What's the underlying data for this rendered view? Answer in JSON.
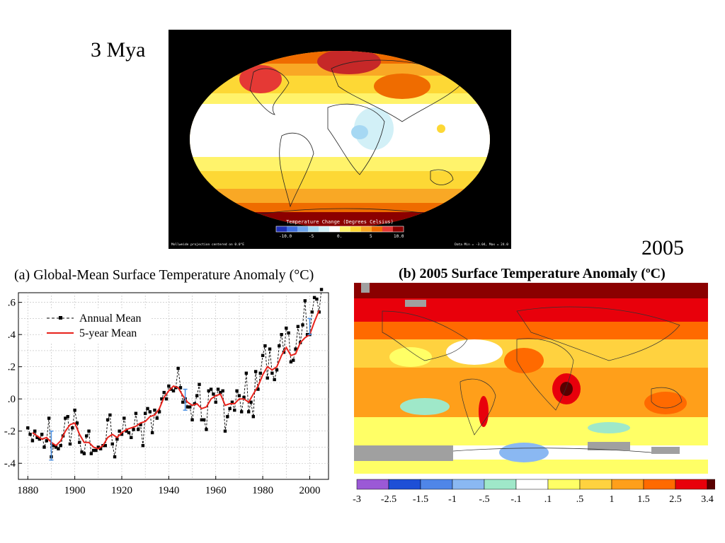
{
  "labels": {
    "mya": "3 Mya",
    "year2005": "2005"
  },
  "map3": {
    "colorbar_title": "Temperature Change (Degrees Celsius)",
    "tick_labels": [
      "-10.0",
      "-5",
      "0.",
      "5",
      "10.0"
    ],
    "footer_left": "Mollweide projection centered on 0.0°E",
    "footer_right": "Data Min = -3.04, Max = 24.0",
    "colors": [
      "#1f2fb3",
      "#3f6fe0",
      "#6fa6ee",
      "#a6d8f3",
      "#d2f0f7",
      "#ffffff",
      "#fff36b",
      "#fdd835",
      "#f9a825",
      "#ef6c00",
      "#e53935",
      "#8b0000"
    ]
  },
  "chartA": {
    "title": "(a)  Global-Mean Surface Temperature Anomaly (°C)"
  },
  "chartB": {
    "title": "(b) 2005 Surface Temperature Anomaly (ºC)",
    "colorbar_ticks": [
      "-3",
      "-2.5",
      "-1.5",
      "-1",
      "-.5",
      "-.1",
      ".1",
      ".5",
      "1",
      "1.5",
      "2.5",
      "3.4"
    ],
    "colorbar_colors": [
      "#9b59d6",
      "#1e4fd6",
      "#4f86e8",
      "#8ab8f2",
      "#9fe8c9",
      "#ffffff",
      "#ffff66",
      "#ffd23f",
      "#ff9f1a",
      "#ff6a00",
      "#e8000b",
      "#5a0000"
    ]
  },
  "chart_data": {
    "type": "line",
    "title": "(a)  Global-Mean Surface Temperature Anomaly (°C)",
    "xlabel": "",
    "ylabel": "",
    "xlim": [
      1876,
      2008
    ],
    "ylim": [
      -0.5,
      0.66
    ],
    "xticks": [
      1880,
      1900,
      1920,
      1940,
      1960,
      1980,
      2000
    ],
    "yticks": [
      -0.4,
      -0.2,
      0.0,
      0.2,
      0.4,
      0.6
    ],
    "ytick_labels": [
      "-.4",
      "-.2",
      ".0",
      ".2",
      ".4",
      ".6"
    ],
    "grid": true,
    "legend": "top-left",
    "series": [
      {
        "name": "Annual Mean",
        "style": "dashed-markers",
        "color": "#000000",
        "x": [
          1880,
          1881,
          1882,
          1883,
          1884,
          1885,
          1886,
          1887,
          1888,
          1889,
          1890,
          1891,
          1892,
          1893,
          1894,
          1895,
          1896,
          1897,
          1898,
          1899,
          1900,
          1901,
          1902,
          1903,
          1904,
          1905,
          1906,
          1907,
          1908,
          1909,
          1910,
          1911,
          1912,
          1913,
          1914,
          1915,
          1916,
          1917,
          1918,
          1919,
          1920,
          1921,
          1922,
          1923,
          1924,
          1925,
          1926,
          1927,
          1928,
          1929,
          1930,
          1931,
          1932,
          1933,
          1934,
          1935,
          1936,
          1937,
          1938,
          1939,
          1940,
          1941,
          1942,
          1943,
          1944,
          1945,
          1946,
          1947,
          1948,
          1949,
          1950,
          1951,
          1952,
          1953,
          1954,
          1955,
          1956,
          1957,
          1958,
          1959,
          1960,
          1961,
          1962,
          1963,
          1964,
          1965,
          1966,
          1967,
          1968,
          1969,
          1970,
          1971,
          1972,
          1973,
          1974,
          1975,
          1976,
          1977,
          1978,
          1979,
          1980,
          1981,
          1982,
          1983,
          1984,
          1985,
          1986,
          1987,
          1988,
          1989,
          1990,
          1991,
          1992,
          1993,
          1994,
          1995,
          1996,
          1997,
          1998,
          1999,
          2000,
          2001,
          2002,
          2003,
          2004,
          2005
        ],
        "y": [
          -0.18,
          -0.22,
          -0.26,
          -0.2,
          -0.24,
          -0.25,
          -0.22,
          -0.3,
          -0.26,
          -0.12,
          -0.36,
          -0.29,
          -0.3,
          -0.31,
          -0.29,
          -0.23,
          -0.12,
          -0.11,
          -0.28,
          -0.18,
          -0.07,
          -0.15,
          -0.27,
          -0.33,
          -0.34,
          -0.23,
          -0.2,
          -0.34,
          -0.32,
          -0.32,
          -0.3,
          -0.31,
          -0.29,
          -0.29,
          -0.13,
          -0.1,
          -0.28,
          -0.36,
          -0.25,
          -0.2,
          -0.22,
          -0.12,
          -0.2,
          -0.21,
          -0.24,
          -0.19,
          -0.09,
          -0.19,
          -0.16,
          -0.29,
          -0.09,
          -0.06,
          -0.08,
          -0.21,
          -0.07,
          -0.12,
          -0.08,
          0.0,
          0.04,
          0.0,
          0.08,
          0.06,
          0.05,
          0.07,
          0.19,
          0.07,
          -0.02,
          0.0,
          -0.05,
          -0.05,
          -0.13,
          -0.03,
          0.02,
          0.09,
          -0.13,
          -0.13,
          -0.19,
          0.05,
          0.06,
          0.03,
          -0.02,
          0.06,
          0.04,
          0.05,
          -0.2,
          -0.11,
          -0.06,
          -0.02,
          -0.07,
          0.05,
          0.02,
          -0.08,
          0.01,
          0.16,
          -0.08,
          -0.02,
          -0.11,
          0.17,
          0.06,
          0.16,
          0.27,
          0.33,
          0.13,
          0.31,
          0.16,
          0.12,
          0.18,
          0.33,
          0.4,
          0.29,
          0.44,
          0.41,
          0.23,
          0.24,
          0.31,
          0.45,
          0.35,
          0.46,
          0.61,
          0.4,
          0.4,
          0.54,
          0.63,
          0.62,
          0.54,
          0.68
        ]
      },
      {
        "name": "5-year Mean",
        "style": "solid",
        "color": "#e8221b",
        "x": [
          1882,
          1884,
          1886,
          1888,
          1890,
          1892,
          1894,
          1896,
          1898,
          1900,
          1902,
          1904,
          1906,
          1908,
          1910,
          1912,
          1914,
          1916,
          1918,
          1920,
          1922,
          1924,
          1926,
          1928,
          1930,
          1932,
          1934,
          1936,
          1938,
          1940,
          1942,
          1944,
          1946,
          1948,
          1950,
          1952,
          1954,
          1956,
          1958,
          1960,
          1962,
          1964,
          1966,
          1968,
          1970,
          1972,
          1974,
          1976,
          1978,
          1980,
          1982,
          1984,
          1986,
          1988,
          1990,
          1992,
          1994,
          1996,
          1998,
          2000,
          2002,
          2004
        ],
        "y": [
          -0.21,
          -0.23,
          -0.25,
          -0.24,
          -0.27,
          -0.29,
          -0.26,
          -0.2,
          -0.16,
          -0.15,
          -0.22,
          -0.27,
          -0.27,
          -0.3,
          -0.31,
          -0.29,
          -0.24,
          -0.22,
          -0.24,
          -0.21,
          -0.19,
          -0.18,
          -0.17,
          -0.15,
          -0.14,
          -0.11,
          -0.1,
          -0.06,
          0.01,
          0.05,
          0.08,
          0.07,
          0.02,
          -0.02,
          -0.04,
          -0.03,
          -0.06,
          -0.05,
          0.0,
          0.02,
          0.03,
          -0.04,
          -0.03,
          -0.03,
          0.0,
          0.0,
          -0.02,
          0.03,
          0.08,
          0.15,
          0.2,
          0.18,
          0.2,
          0.27,
          0.32,
          0.27,
          0.28,
          0.35,
          0.38,
          0.4,
          0.48,
          0.55
        ]
      }
    ],
    "error_bars": [
      {
        "x": 1890,
        "low": -0.38,
        "high": -0.2
      },
      {
        "x": 1947,
        "low": -0.07,
        "high": 0.06
      },
      {
        "x": 2000,
        "low": 0.4,
        "high": 0.5
      }
    ]
  }
}
